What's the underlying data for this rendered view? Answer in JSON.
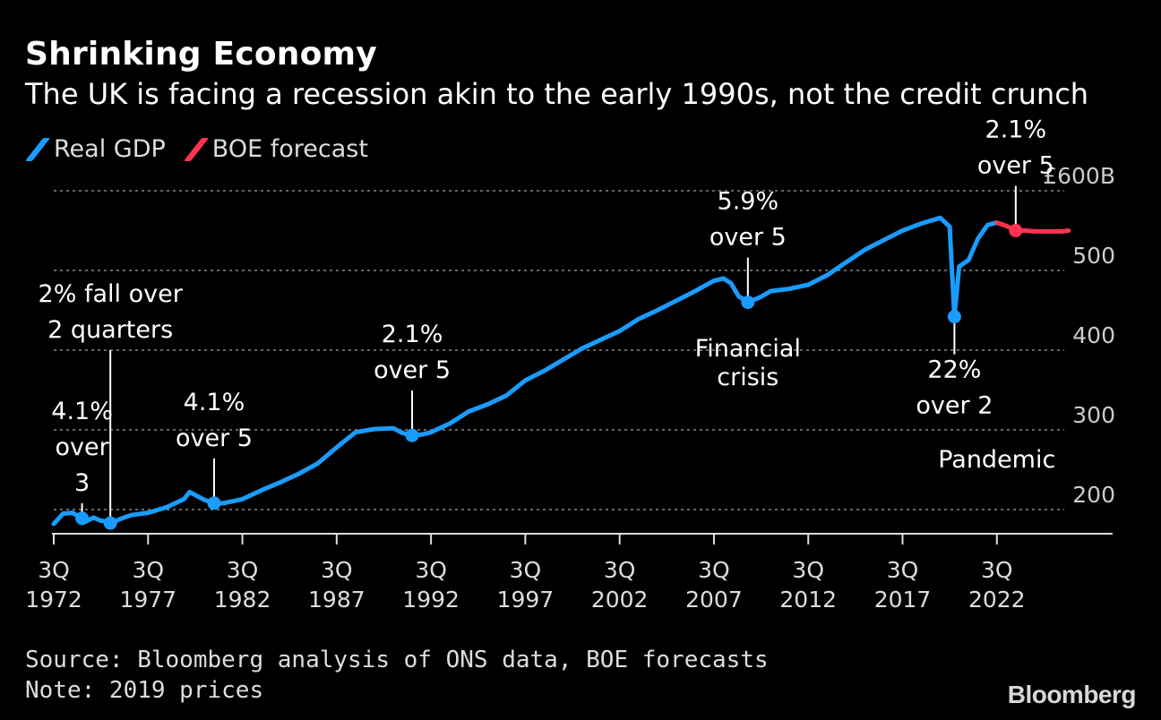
{
  "header": {
    "title": "Shrinking Economy",
    "subtitle": "The UK is facing a recession akin to the early 1990s, not the credit crunch"
  },
  "legend": [
    {
      "label": "Real GDP",
      "color": "#1a9cff"
    },
    {
      "label": "BOE forecast",
      "color": "#ff3350"
    }
  ],
  "footer": {
    "source": "Source: Bloomberg analysis of ONS data, BOE forecasts",
    "note": "Note: 2019 prices",
    "brand": "Bloomberg"
  },
  "chart_data": {
    "type": "line",
    "title": "Shrinking Economy",
    "ylim": [
      180,
      600
    ],
    "yticks": [
      200,
      300,
      400,
      500,
      600
    ],
    "ytick_labels": [
      "200",
      "300",
      "400",
      "500",
      "£600B"
    ],
    "xlim": [
      1972.5,
      2026.5
    ],
    "xticks": [
      {
        "value": 1972.5,
        "line1": "3Q",
        "line2": "1972"
      },
      {
        "value": 1977.5,
        "line1": "3Q",
        "line2": "1977"
      },
      {
        "value": 1982.5,
        "line1": "3Q",
        "line2": "1982"
      },
      {
        "value": 1987.5,
        "line1": "3Q",
        "line2": "1987"
      },
      {
        "value": 1992.5,
        "line1": "3Q",
        "line2": "1992"
      },
      {
        "value": 1997.5,
        "line1": "3Q",
        "line2": "1997"
      },
      {
        "value": 2002.5,
        "line1": "3Q",
        "line2": "2002"
      },
      {
        "value": 2007.5,
        "line1": "3Q",
        "line2": "2007"
      },
      {
        "value": 2012.5,
        "line1": "3Q",
        "line2": "2012"
      },
      {
        "value": 2017.5,
        "line1": "3Q",
        "line2": "2017"
      },
      {
        "value": 2022.5,
        "line1": "3Q",
        "line2": "2022"
      }
    ],
    "series": [
      {
        "name": "Real GDP",
        "color": "#1a9cff",
        "points": [
          [
            1972.5,
            182
          ],
          [
            1973.0,
            195
          ],
          [
            1973.5,
            196
          ],
          [
            1973.9,
            190
          ],
          [
            1974.2,
            185
          ],
          [
            1974.6,
            190
          ],
          [
            1975.0,
            186
          ],
          [
            1975.3,
            185
          ],
          [
            1975.6,
            183
          ],
          [
            1976.0,
            188
          ],
          [
            1976.6,
            193
          ],
          [
            1977.5,
            196
          ],
          [
            1978.5,
            203
          ],
          [
            1979.4,
            213
          ],
          [
            1979.7,
            222
          ],
          [
            1980.5,
            212
          ],
          [
            1981.0,
            208
          ],
          [
            1981.5,
            208
          ],
          [
            1982.5,
            213
          ],
          [
            1983.5,
            224
          ],
          [
            1984.5,
            234
          ],
          [
            1985.5,
            245
          ],
          [
            1986.5,
            258
          ],
          [
            1987.5,
            278
          ],
          [
            1988.5,
            297
          ],
          [
            1989.5,
            301
          ],
          [
            1990.5,
            302
          ],
          [
            1991.0,
            296
          ],
          [
            1991.5,
            293
          ],
          [
            1992.0,
            294
          ],
          [
            1992.5,
            297
          ],
          [
            1993.5,
            308
          ],
          [
            1994.5,
            323
          ],
          [
            1995.5,
            332
          ],
          [
            1996.5,
            343
          ],
          [
            1997.5,
            362
          ],
          [
            1998.5,
            374
          ],
          [
            1999.5,
            388
          ],
          [
            2000.5,
            402
          ],
          [
            2001.5,
            413
          ],
          [
            2002.5,
            424
          ],
          [
            2003.5,
            439
          ],
          [
            2004.5,
            450
          ],
          [
            2005.5,
            462
          ],
          [
            2006.5,
            474
          ],
          [
            2007.5,
            487
          ],
          [
            2008.0,
            490
          ],
          [
            2008.4,
            484
          ],
          [
            2008.8,
            468
          ],
          [
            2009.3,
            460
          ],
          [
            2010.0,
            467
          ],
          [
            2010.5,
            474
          ],
          [
            2011.5,
            477
          ],
          [
            2012.5,
            482
          ],
          [
            2013.5,
            494
          ],
          [
            2014.5,
            510
          ],
          [
            2015.5,
            526
          ],
          [
            2016.5,
            538
          ],
          [
            2017.5,
            550
          ],
          [
            2018.5,
            559
          ],
          [
            2019.5,
            566
          ],
          [
            2020.0,
            555
          ],
          [
            2020.25,
            442
          ],
          [
            2020.5,
            505
          ],
          [
            2021.0,
            513
          ],
          [
            2021.5,
            540
          ],
          [
            2022.0,
            557
          ],
          [
            2022.5,
            560
          ]
        ]
      },
      {
        "name": "BOE forecast",
        "color": "#ff3350",
        "points": [
          [
            2022.5,
            560
          ],
          [
            2023.0,
            556
          ],
          [
            2023.5,
            550
          ],
          [
            2024.0,
            550
          ],
          [
            2024.5,
            549
          ],
          [
            2025.0,
            549
          ],
          [
            2025.5,
            549
          ],
          [
            2026.0,
            549
          ],
          [
            2026.3,
            550
          ]
        ]
      }
    ],
    "markers": [
      {
        "x": 1974.0,
        "y": 189,
        "color": "#1a9cff",
        "label": [
          "4.1%",
          "over",
          "3"
        ],
        "label_pos": "above"
      },
      {
        "x": 1975.5,
        "y": 183,
        "color": "#1a9cff",
        "label": [
          "2% fall over",
          "2 quarters"
        ],
        "label_pos": "above"
      },
      {
        "x": 1981.0,
        "y": 208,
        "color": "#1a9cff",
        "label": [
          "4.1%",
          "over 5"
        ],
        "label_pos": "above"
      },
      {
        "x": 1991.5,
        "y": 293,
        "color": "#1a9cff",
        "label": [
          "2.1%",
          "over 5"
        ],
        "label_pos": "above"
      },
      {
        "x": 2009.3,
        "y": 460,
        "color": "#1a9cff",
        "label": [
          "5.9%",
          "over 5"
        ],
        "label_pos": "above"
      },
      {
        "x": 2020.25,
        "y": 442,
        "color": "#1a9cff",
        "label": [
          "22%",
          "over 2"
        ],
        "label_pos": "below"
      },
      {
        "x": 2023.5,
        "y": 550,
        "color": "#ff3350",
        "label": [
          "2.1%",
          "over 5"
        ],
        "label_pos": "above"
      }
    ],
    "annotations": [
      {
        "text": [
          "Financial",
          "crisis"
        ],
        "x": 2009.3,
        "y": 392
      },
      {
        "text": [
          "Pandemic"
        ],
        "x": 2022.5,
        "y": 253
      }
    ]
  }
}
